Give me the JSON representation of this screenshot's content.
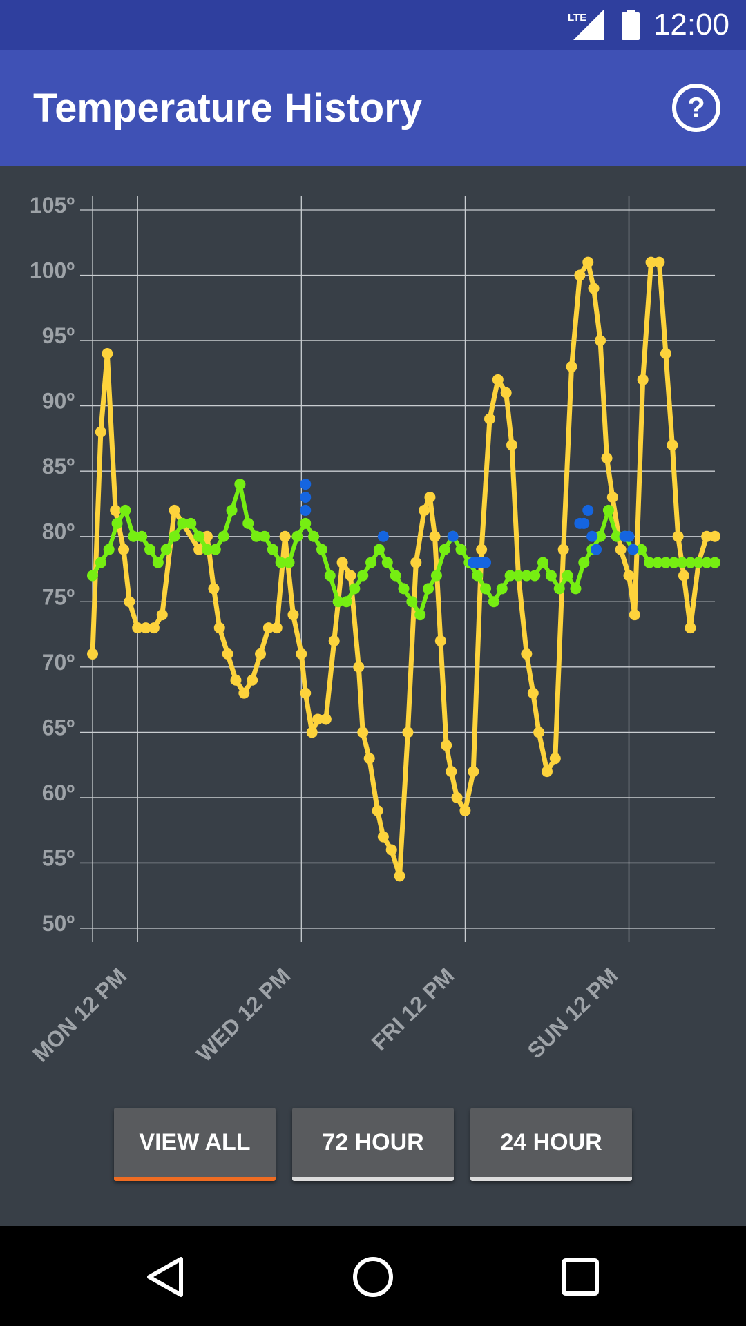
{
  "status_bar": {
    "time": "12:00",
    "network_icon": "lte-signal-icon",
    "battery_icon": "battery-full-icon"
  },
  "app_bar": {
    "title": "Temperature History",
    "help_icon": "help-circle-icon"
  },
  "colors": {
    "status_bar": "#2f3f9e",
    "app_bar": "#3f51b5",
    "background": "#383f47",
    "outdoor_series": "#fdd33c",
    "indoor_series": "#76ee12",
    "setpoint_series": "#1565e0",
    "active_tab_underline": "#ef6c22"
  },
  "chart_data": {
    "type": "line",
    "ylim": [
      50,
      105
    ],
    "yticks": [
      50,
      55,
      60,
      65,
      70,
      75,
      80,
      85,
      90,
      95,
      100,
      105
    ],
    "ytick_labels": [
      "50º",
      "55º",
      "60º",
      "65º",
      "70º",
      "75º",
      "80º",
      "85º",
      "90º",
      "95º",
      "100º",
      "105º"
    ],
    "xlim": [
      0,
      7.6
    ],
    "xticks": [
      0.55,
      2.55,
      4.55,
      6.55
    ],
    "xtick_labels": [
      "MON 12 PM",
      "WED 12 PM",
      "FRI 12 PM",
      "SUN 12 PM"
    ],
    "grid": true,
    "series": [
      {
        "color": "#fdd33c",
        "marker": "dot",
        "x": [
          0,
          0.1,
          0.18,
          0.28,
          0.38,
          0.45,
          0.55,
          0.65,
          0.75,
          0.85,
          1.0,
          1.1,
          1.3,
          1.4,
          1.48,
          1.55,
          1.65,
          1.75,
          1.85,
          1.95,
          2.05,
          2.15,
          2.25,
          2.35,
          2.45,
          2.55,
          2.6,
          2.68,
          2.75,
          2.85,
          2.95,
          3.05,
          3.15,
          3.25,
          3.3,
          3.38,
          3.48,
          3.55,
          3.65,
          3.75,
          3.85,
          3.95,
          4.05,
          4.12,
          4.18,
          4.25,
          4.32,
          4.38,
          4.45,
          4.55,
          4.65,
          4.75,
          4.85,
          4.95,
          5.05,
          5.12,
          5.2,
          5.3,
          5.38,
          5.45,
          5.55,
          5.65,
          5.75,
          5.85,
          5.95,
          6.05,
          6.12,
          6.2,
          6.28,
          6.35,
          6.45,
          6.55,
          6.62,
          6.72,
          6.82,
          6.92,
          7.0,
          7.08,
          7.15,
          7.22,
          7.3,
          7.4,
          7.5,
          7.6
        ],
        "values": [
          71,
          88,
          94,
          82,
          79,
          75,
          73,
          73,
          73,
          74,
          82,
          81,
          79,
          80,
          76,
          73,
          71,
          69,
          68,
          69,
          71,
          73,
          73,
          80,
          74,
          71,
          68,
          65,
          66,
          66,
          72,
          78,
          77,
          70,
          65,
          63,
          59,
          57,
          56,
          54,
          65,
          78,
          82,
          83,
          80,
          72,
          64,
          62,
          60,
          59,
          62,
          79,
          89,
          92,
          91,
          87,
          77,
          71,
          68,
          65,
          62,
          63,
          79,
          93,
          100,
          101,
          99,
          95,
          86,
          83,
          79,
          77,
          74,
          92,
          101,
          101,
          94,
          87,
          80,
          77,
          73,
          78,
          80,
          80
        ]
      },
      {
        "color": "#76ee12",
        "marker": "dot",
        "x": [
          0,
          0.1,
          0.2,
          0.3,
          0.4,
          0.5,
          0.6,
          0.7,
          0.8,
          0.9,
          1.0,
          1.1,
          1.2,
          1.3,
          1.4,
          1.5,
          1.6,
          1.7,
          1.8,
          1.9,
          2.0,
          2.1,
          2.2,
          2.3,
          2.4,
          2.5,
          2.6,
          2.7,
          2.8,
          2.9,
          3.0,
          3.1,
          3.2,
          3.3,
          3.4,
          3.5,
          3.6,
          3.7,
          3.8,
          3.9,
          4.0,
          4.1,
          4.2,
          4.3,
          4.4,
          4.5,
          4.6,
          4.7,
          4.8,
          4.9,
          5.0,
          5.1,
          5.2,
          5.3,
          5.4,
          5.5,
          5.6,
          5.7,
          5.8,
          5.9,
          6.0,
          6.1,
          6.2,
          6.3,
          6.4,
          6.5,
          6.6,
          6.7,
          6.8,
          6.9,
          7.0,
          7.1,
          7.2,
          7.3,
          7.4,
          7.5,
          7.6
        ],
        "values": [
          77,
          78,
          79,
          81,
          82,
          80,
          80,
          79,
          78,
          79,
          80,
          81,
          81,
          80,
          79,
          79,
          80,
          82,
          84,
          81,
          80,
          80,
          79,
          78,
          78,
          80,
          81,
          80,
          79,
          77,
          75,
          75,
          76,
          77,
          78,
          79,
          78,
          77,
          76,
          75,
          74,
          76,
          77,
          79,
          80,
          79,
          78,
          77,
          76,
          75,
          76,
          77,
          77,
          77,
          77,
          78,
          77,
          76,
          77,
          76,
          78,
          79,
          80,
          82,
          80,
          80,
          79,
          79,
          78,
          78,
          78,
          78,
          78,
          78,
          78,
          78,
          78
        ]
      },
      {
        "color": "#1565e0",
        "marker": "dot",
        "x": [
          2.6,
          2.6,
          2.6,
          3.55,
          4.4,
          4.65,
          4.7,
          4.75,
          4.8,
          5.95,
          6.0,
          6.05,
          6.1,
          6.15,
          6.5,
          6.55,
          6.6
        ],
        "values": [
          84,
          83,
          82,
          80,
          80,
          78,
          78,
          78,
          78,
          81,
          81,
          82,
          80,
          79,
          80,
          80,
          79
        ]
      }
    ]
  },
  "range_buttons": [
    {
      "label": "VIEW ALL",
      "active": true
    },
    {
      "label": "72 HOUR",
      "active": false
    },
    {
      "label": "24 HOUR",
      "active": false
    }
  ],
  "nav_bar": {
    "back": "back-triangle-icon",
    "home": "home-circle-icon",
    "recents": "recents-square-icon"
  }
}
